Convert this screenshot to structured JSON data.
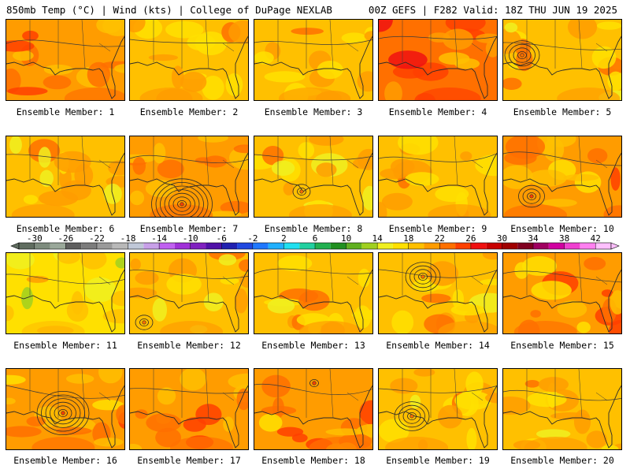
{
  "header": {
    "left": "850mb Temp (°C) | Wind (kts) | College of DuPage NEXLAB",
    "right": "00Z GEFS | F282 Valid: 18Z THU JUN 19 2025"
  },
  "chart_data": {
    "type": "heatmap",
    "caption_prefix": "Ensemble Member: ",
    "members": [
      {
        "n": 1,
        "label": "1",
        "dominant_temp_c": 20,
        "low": {
          "present": false,
          "rings": 0
        }
      },
      {
        "n": 2,
        "label": "2",
        "dominant_temp_c": 19,
        "low": {
          "present": false,
          "rings": 0
        }
      },
      {
        "n": 3,
        "label": "3",
        "dominant_temp_c": 18,
        "low": {
          "present": false,
          "rings": 0
        }
      },
      {
        "n": 4,
        "label": "4",
        "dominant_temp_c": 22,
        "low": {
          "present": false,
          "rings": 0
        }
      },
      {
        "n": 5,
        "label": "5",
        "dominant_temp_c": 19,
        "low": {
          "present": true,
          "rings": 4
        }
      },
      {
        "n": 6,
        "label": "6",
        "dominant_temp_c": 19,
        "low": {
          "present": false,
          "rings": 0
        }
      },
      {
        "n": 7,
        "label": "7",
        "dominant_temp_c": 20,
        "low": {
          "present": true,
          "rings": 7
        }
      },
      {
        "n": 8,
        "label": "8",
        "dominant_temp_c": 19,
        "low": {
          "present": true,
          "rings": 2
        }
      },
      {
        "n": 9,
        "label": "9",
        "dominant_temp_c": 19,
        "low": {
          "present": false,
          "rings": 0
        }
      },
      {
        "n": 10,
        "label": "10",
        "dominant_temp_c": 20,
        "low": {
          "present": true,
          "rings": 3
        }
      },
      {
        "n": 11,
        "label": "11",
        "dominant_temp_c": 17,
        "low": {
          "present": false,
          "rings": 0
        }
      },
      {
        "n": 12,
        "label": "12",
        "dominant_temp_c": 19,
        "low": {
          "present": true,
          "rings": 2
        }
      },
      {
        "n": 13,
        "label": "13",
        "dominant_temp_c": 18,
        "low": {
          "present": false,
          "rings": 0
        }
      },
      {
        "n": 14,
        "label": "14",
        "dominant_temp_c": 19,
        "low": {
          "present": true,
          "rings": 4
        }
      },
      {
        "n": 15,
        "label": "15",
        "dominant_temp_c": 20,
        "low": {
          "present": false,
          "rings": 0
        }
      },
      {
        "n": 16,
        "label": "16",
        "dominant_temp_c": 20,
        "low": {
          "present": true,
          "rings": 6
        }
      },
      {
        "n": 17,
        "label": "17",
        "dominant_temp_c": 20,
        "low": {
          "present": false,
          "rings": 0
        }
      },
      {
        "n": 18,
        "label": "18",
        "dominant_temp_c": 20,
        "low": {
          "present": true,
          "rings": 1
        }
      },
      {
        "n": 19,
        "label": "19",
        "dominant_temp_c": 18,
        "low": {
          "present": true,
          "rings": 4
        }
      },
      {
        "n": 20,
        "label": "20",
        "dominant_temp_c": 19,
        "low": {
          "present": false,
          "rings": 0
        }
      }
    ],
    "colorbar": {
      "ticks": [
        "-30",
        "-26",
        "-22",
        "-18",
        "-14",
        "-10",
        "-6",
        "-2",
        "2",
        "6",
        "10",
        "14",
        "18",
        "22",
        "26",
        "30",
        "34",
        "38",
        "42"
      ],
      "tick_values": [
        -30,
        -26,
        -22,
        -18,
        -14,
        -10,
        -6,
        -2,
        2,
        6,
        10,
        14,
        18,
        22,
        26,
        30,
        34,
        38,
        42
      ],
      "min": -32,
      "max": 44,
      "step": 2,
      "colors": [
        "#606d60",
        "#7e8c7e",
        "#9aa89a",
        "#5e5e5e",
        "#7c7c7c",
        "#9a9a9a",
        "#b8b8b8",
        "#c0c8d8",
        "#c8a0e8",
        "#c060f0",
        "#a030d8",
        "#8020c0",
        "#5010a8",
        "#2020b0",
        "#2048e0",
        "#2078ff",
        "#20b0ff",
        "#20e0f0",
        "#20d0a0",
        "#20b050",
        "#209020",
        "#60b020",
        "#a0d020",
        "#f0f020",
        "#ffe000",
        "#ffc000",
        "#ff9c00",
        "#ff7000",
        "#ff4000",
        "#f01010",
        "#c80000",
        "#a00000",
        "#800020",
        "#a00060",
        "#d000a0",
        "#f040d0",
        "#ff80f0",
        "#ffc0ff"
      ]
    }
  }
}
